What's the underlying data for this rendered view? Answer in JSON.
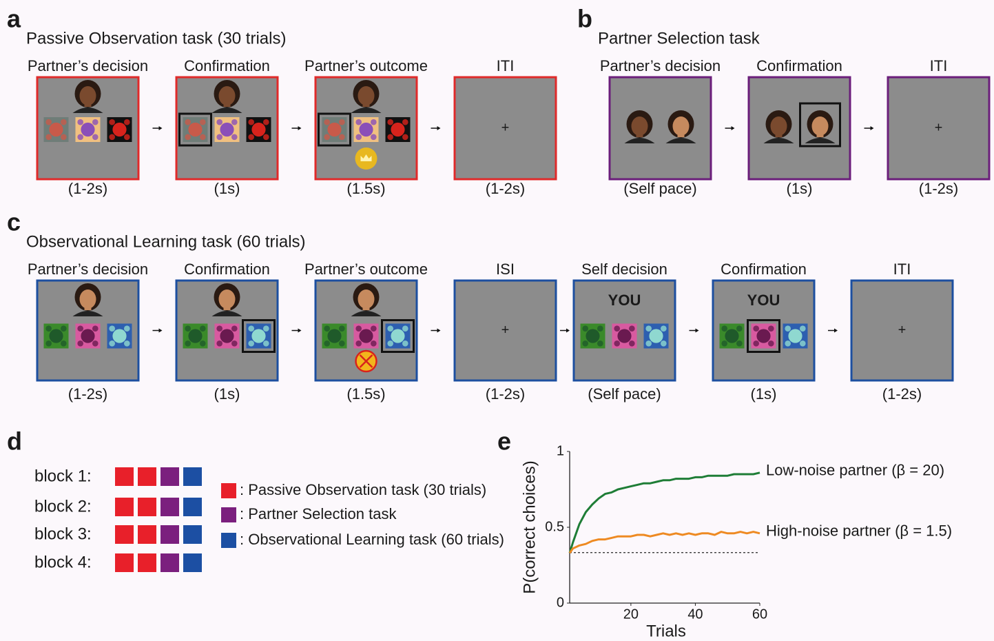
{
  "panels": {
    "a": {
      "letter": "a",
      "title": "Passive Observation task (30 trials)",
      "screens": [
        {
          "label": "Partner’s decision",
          "duration": "(1-2s)"
        },
        {
          "label": "Confirmation",
          "duration": "(1s)"
        },
        {
          "label": "Partner’s outcome",
          "duration": "(1.5s)"
        },
        {
          "label": "ITI",
          "duration": "(1-2s)",
          "center_text": "+"
        }
      ]
    },
    "b": {
      "letter": "b",
      "title": "Partner Selection task",
      "screens": [
        {
          "label": "Partner’s decision",
          "duration": "(Self pace)"
        },
        {
          "label": "Confirmation",
          "duration": "(1s)"
        },
        {
          "label": "ITI",
          "duration": "(1-2s)",
          "center_text": "+"
        }
      ]
    },
    "c": {
      "letter": "c",
      "title": "Observational Learning task (60 trials)",
      "screens": [
        {
          "label": "Partner’s decision",
          "duration": "(1-2s)"
        },
        {
          "label": "Confirmation",
          "duration": "(1s)"
        },
        {
          "label": "Partner’s outcome",
          "duration": "(1.5s)"
        },
        {
          "label": "ISI",
          "duration": "(1-2s)",
          "center_text": "+"
        },
        {
          "label": "Self decision",
          "duration": "(Self pace)",
          "center_text": "YOU"
        },
        {
          "label": "Confirmation",
          "duration": "(1s)",
          "center_text": "YOU"
        },
        {
          "label": "ITI",
          "duration": "(1-2s)",
          "center_text": "+"
        }
      ]
    },
    "d": {
      "letter": "d",
      "blocks": [
        "block 1:",
        "block 2:",
        "block 3:",
        "block 4:"
      ],
      "legend": [
        {
          "color": "#e8202a",
          "text": ": Passive Observation task (30 trials)"
        },
        {
          "color": "#7b1f7e",
          "text": ": Partner Selection task"
        },
        {
          "color": "#1c4fa3",
          "text": ": Observational Learning task (60 trials)"
        }
      ]
    }
  },
  "chart_data": {
    "type": "line",
    "panel_letter": "e",
    "xlabel": "Trials",
    "ylabel": "P(correct choices)",
    "xlim": [
      1,
      60
    ],
    "ylim": [
      0,
      1
    ],
    "xticks": [
      20,
      40,
      60
    ],
    "yticks": [
      0,
      0.5,
      1
    ],
    "chance_level": 0.333,
    "x": [
      1,
      2,
      4,
      6,
      8,
      10,
      12,
      14,
      16,
      18,
      20,
      22,
      24,
      26,
      28,
      30,
      32,
      34,
      36,
      38,
      40,
      42,
      44,
      46,
      48,
      50,
      52,
      54,
      56,
      58,
      60
    ],
    "series": [
      {
        "name": "Low-noise partner (β = 20)",
        "color": "#1e7d36",
        "values": [
          0.33,
          0.4,
          0.52,
          0.6,
          0.65,
          0.69,
          0.72,
          0.73,
          0.75,
          0.76,
          0.77,
          0.78,
          0.79,
          0.79,
          0.8,
          0.81,
          0.81,
          0.82,
          0.82,
          0.82,
          0.83,
          0.83,
          0.84,
          0.84,
          0.84,
          0.84,
          0.85,
          0.85,
          0.85,
          0.85,
          0.86
        ]
      },
      {
        "name": "High-noise partner (β = 1.5)",
        "color": "#ee8a22",
        "values": [
          0.33,
          0.36,
          0.38,
          0.39,
          0.41,
          0.42,
          0.42,
          0.43,
          0.44,
          0.44,
          0.44,
          0.45,
          0.45,
          0.44,
          0.45,
          0.46,
          0.45,
          0.46,
          0.45,
          0.46,
          0.45,
          0.46,
          0.46,
          0.45,
          0.47,
          0.46,
          0.46,
          0.47,
          0.46,
          0.47,
          0.46
        ]
      }
    ]
  }
}
